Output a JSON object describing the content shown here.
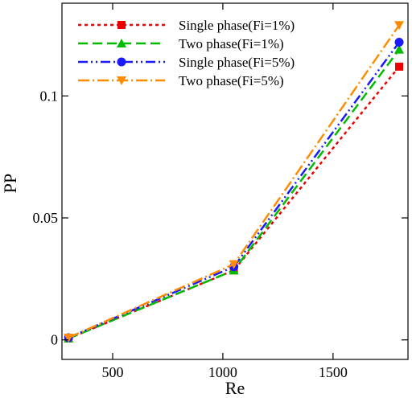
{
  "chart_data": {
    "type": "line",
    "title": "",
    "xlabel": "Re",
    "ylabel": "PP",
    "xlim": [
      270,
      1840
    ],
    "ylim": [
      -0.008,
      0.138
    ],
    "xticks": [
      500,
      1000,
      1500
    ],
    "xtick_labels": [
      "500",
      "1000",
      "1500"
    ],
    "yticks": [
      0,
      0.05,
      0.1
    ],
    "ytick_labels": [
      "0",
      "0.05",
      "0.1"
    ],
    "grid": false,
    "legend_position": "top-left",
    "x": [
      300,
      1050,
      1800
    ],
    "series": [
      {
        "name": "Single phase(Fi=1%)",
        "values": [
          0.0006,
          0.0285,
          0.112
        ],
        "color": "#ee0000",
        "dash": "4,4",
        "marker": "square"
      },
      {
        "name": "Two phase(Fi=1%)",
        "values": [
          0.0006,
          0.0285,
          0.119
        ],
        "color": "#00bb00",
        "dash": "12,6",
        "marker": "triangle-up"
      },
      {
        "name": "Single phase(Fi=5%)",
        "values": [
          0.0009,
          0.03,
          0.122
        ],
        "color": "#1a1aff",
        "dash": "12,4,2,4,2,4",
        "marker": "circle"
      },
      {
        "name": "Two phase(Fi=5%)",
        "values": [
          0.0009,
          0.031,
          0.129
        ],
        "color": "#ff8c00",
        "dash": "14,4,2,4",
        "marker": "triangle-down"
      }
    ]
  }
}
